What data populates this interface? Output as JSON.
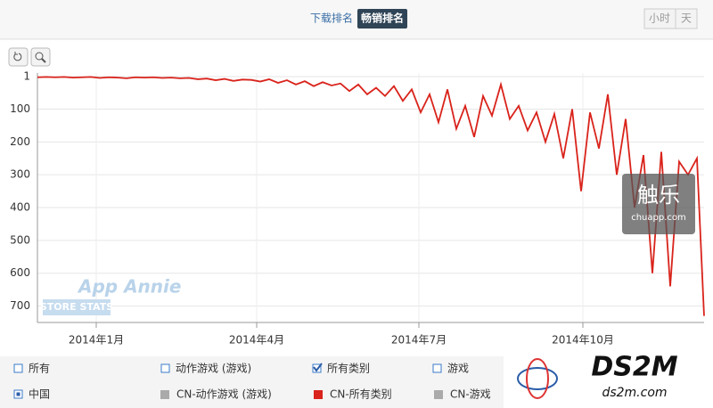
{
  "chart_data": {
    "type": "line",
    "reversed": true,
    "grid": true,
    "x": [
      0,
      5,
      10,
      15,
      20,
      25,
      30,
      35,
      40,
      45,
      50,
      55,
      60,
      65,
      70,
      75,
      80,
      85,
      90,
      95,
      100,
      105,
      110,
      115,
      120,
      125,
      130,
      135,
      140,
      145,
      150,
      155,
      160,
      165,
      170,
      175,
      180,
      185,
      190,
      195,
      200,
      205,
      210,
      215,
      220,
      225,
      230,
      235,
      240,
      245,
      250,
      255,
      260,
      265,
      270,
      275,
      280,
      285,
      290,
      295,
      300,
      305,
      310,
      315,
      320,
      325,
      330,
      335,
      340,
      345,
      350,
      355,
      360,
      365,
      370,
      374
    ],
    "series": [
      {
        "name": "CN-所有类别",
        "color": "#d9231b",
        "values": [
          3,
          2,
          3,
          2,
          4,
          3,
          2,
          5,
          3,
          4,
          6,
          3,
          4,
          3,
          5,
          4,
          6,
          5,
          9,
          7,
          12,
          8,
          14,
          10,
          11,
          16,
          9,
          20,
          12,
          25,
          15,
          30,
          18,
          28,
          22,
          45,
          25,
          55,
          35,
          60,
          30,
          75,
          40,
          110,
          55,
          140,
          40,
          160,
          90,
          185,
          60,
          120,
          25,
          130,
          90,
          165,
          110,
          200,
          115,
          250,
          100,
          350,
          110,
          220,
          55,
          300,
          130,
          400,
          240,
          600,
          230,
          640,
          260,
          300,
          250,
          730
        ]
      }
    ],
    "xlim": [
      0,
      374
    ],
    "xticks": [
      {
        "value": 33,
        "label": "2014年1月"
      },
      {
        "value": 123,
        "label": "2014年4月"
      },
      {
        "value": 214,
        "label": "2014年7月"
      },
      {
        "value": 306,
        "label": "2014年10月"
      }
    ],
    "ylim": [
      1,
      750
    ],
    "yticks": [
      1,
      100,
      200,
      300,
      400,
      500,
      600,
      700
    ]
  },
  "ui": {
    "tabs": [
      "下载排名",
      "畅销排名"
    ],
    "period": [
      "小时",
      "天"
    ],
    "filters": [
      "所有",
      "动作游戏 (游戏)",
      "所有类别",
      "游戏"
    ],
    "country": "中国",
    "legend_other": [
      "CN-动作游戏 (游戏)",
      "CN-游戏"
    ],
    "watermark": [
      "App Annie",
      "STORE STATS"
    ],
    "logo1": [
      "触乐",
      "chuapp.com"
    ],
    "logo2": [
      "DS2M",
      "ds2m.com"
    ]
  }
}
